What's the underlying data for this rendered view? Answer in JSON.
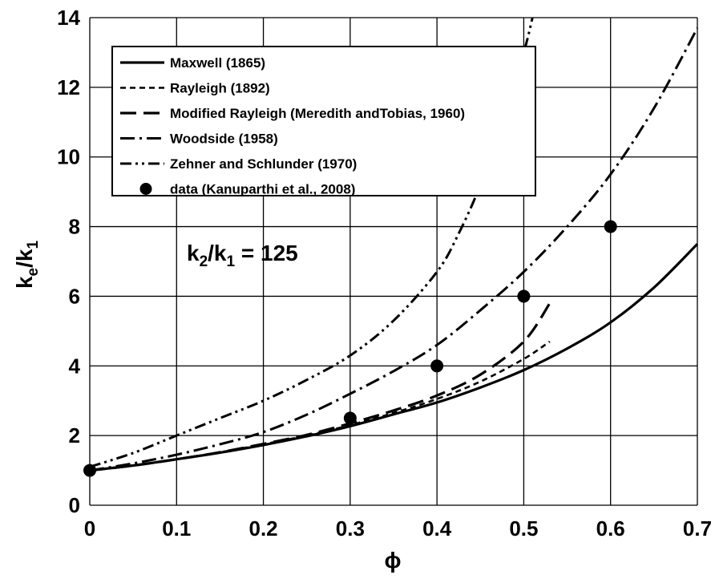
{
  "chart_data": {
    "type": "line",
    "title": "",
    "xlabel": "ϕ",
    "ylabel": {
      "base": "k",
      "sub1": "e",
      "mid": "/k",
      "sub2": "1"
    },
    "xlim": [
      0,
      0.7
    ],
    "ylim": [
      0,
      14
    ],
    "xticks": [
      0,
      0.1,
      0.2,
      0.3,
      0.4,
      0.5,
      0.6,
      0.7
    ],
    "xtick_labels": [
      "0",
      "0.1",
      "0.2",
      "0.3",
      "0.4",
      "0.5",
      "0.6",
      "0.7"
    ],
    "yticks": [
      0,
      2,
      4,
      6,
      8,
      10,
      12,
      14
    ],
    "ytick_labels": [
      "0",
      "2",
      "4",
      "6",
      "8",
      "10",
      "12",
      "14"
    ],
    "grid": true,
    "legend_position": "top-left",
    "annotation": {
      "k": "k",
      "sub2": "2",
      "slash": "/k",
      "sub1": "1",
      "rest": " = 125"
    },
    "series": [
      {
        "name": "Maxwell (1865)",
        "style": "solid",
        "x": [
          0,
          0.05,
          0.1,
          0.15,
          0.2,
          0.25,
          0.3,
          0.35,
          0.4,
          0.45,
          0.5,
          0.55,
          0.6,
          0.65,
          0.7
        ],
        "y": [
          1.0,
          1.14,
          1.32,
          1.51,
          1.73,
          1.98,
          2.27,
          2.61,
          2.95,
          3.38,
          3.88,
          4.5,
          5.25,
          6.25,
          7.5
        ]
      },
      {
        "name": "Rayleigh (1892)",
        "style": "short-dash",
        "x": [
          0,
          0.05,
          0.1,
          0.15,
          0.2,
          0.25,
          0.3,
          0.35,
          0.4,
          0.45,
          0.5,
          0.53
        ],
        "y": [
          1.0,
          1.14,
          1.32,
          1.52,
          1.75,
          2.0,
          2.3,
          2.65,
          3.05,
          3.55,
          4.2,
          4.7
        ]
      },
      {
        "name": "Modified Rayleigh (Meredith andTobias, 1960)",
        "style": "long-dash",
        "x": [
          0,
          0.05,
          0.1,
          0.15,
          0.2,
          0.25,
          0.3,
          0.35,
          0.4,
          0.45,
          0.5,
          0.53
        ],
        "y": [
          1.0,
          1.14,
          1.32,
          1.52,
          1.76,
          2.02,
          2.35,
          2.72,
          3.15,
          3.75,
          4.7,
          5.8
        ]
      },
      {
        "name": "Woodside (1958)",
        "style": "dash-dot",
        "x": [
          0,
          0.05,
          0.1,
          0.15,
          0.2,
          0.25,
          0.3,
          0.35,
          0.4,
          0.45,
          0.5,
          0.55,
          0.6,
          0.65,
          0.7
        ],
        "y": [
          1.0,
          1.2,
          1.45,
          1.75,
          2.1,
          2.6,
          3.2,
          3.85,
          4.6,
          5.6,
          6.7,
          8.0,
          9.5,
          11.4,
          13.7
        ]
      },
      {
        "name": "Zehner and Schlunder (1970)",
        "style": "dash-dot-dot",
        "x": [
          0,
          0.05,
          0.1,
          0.15,
          0.2,
          0.25,
          0.3,
          0.35,
          0.4,
          0.425,
          0.45,
          0.475,
          0.5,
          0.51
        ],
        "y": [
          1.1,
          1.5,
          2.0,
          2.5,
          3.0,
          3.6,
          4.3,
          5.3,
          6.7,
          7.8,
          9.2,
          11.0,
          13.0,
          14.0
        ]
      },
      {
        "name": "data (Kanuparthi et al., 2008)",
        "style": "markers",
        "x": [
          0,
          0.3,
          0.4,
          0.5,
          0.6
        ],
        "y": [
          1.0,
          2.5,
          4.0,
          6.0,
          8.0
        ]
      }
    ]
  }
}
